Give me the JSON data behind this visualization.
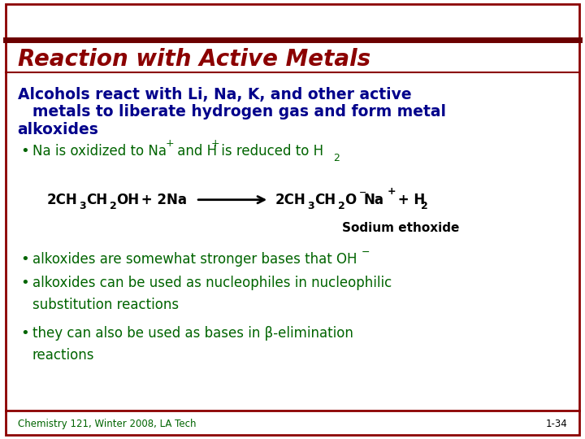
{
  "title": "Reaction with Active Metals",
  "title_color": "#8B0000",
  "title_bg_color": "#FFFFFF",
  "title_top_border_color": "#6B0000",
  "body_bg_color": "#FFFFFF",
  "slide_border_color": "#8B0000",
  "blue_color": "#00008B",
  "green_color": "#006400",
  "black_color": "#000000",
  "footer_text": "Chemistry 121, Winter 2008, LA Tech",
  "slide_number": "1-34"
}
